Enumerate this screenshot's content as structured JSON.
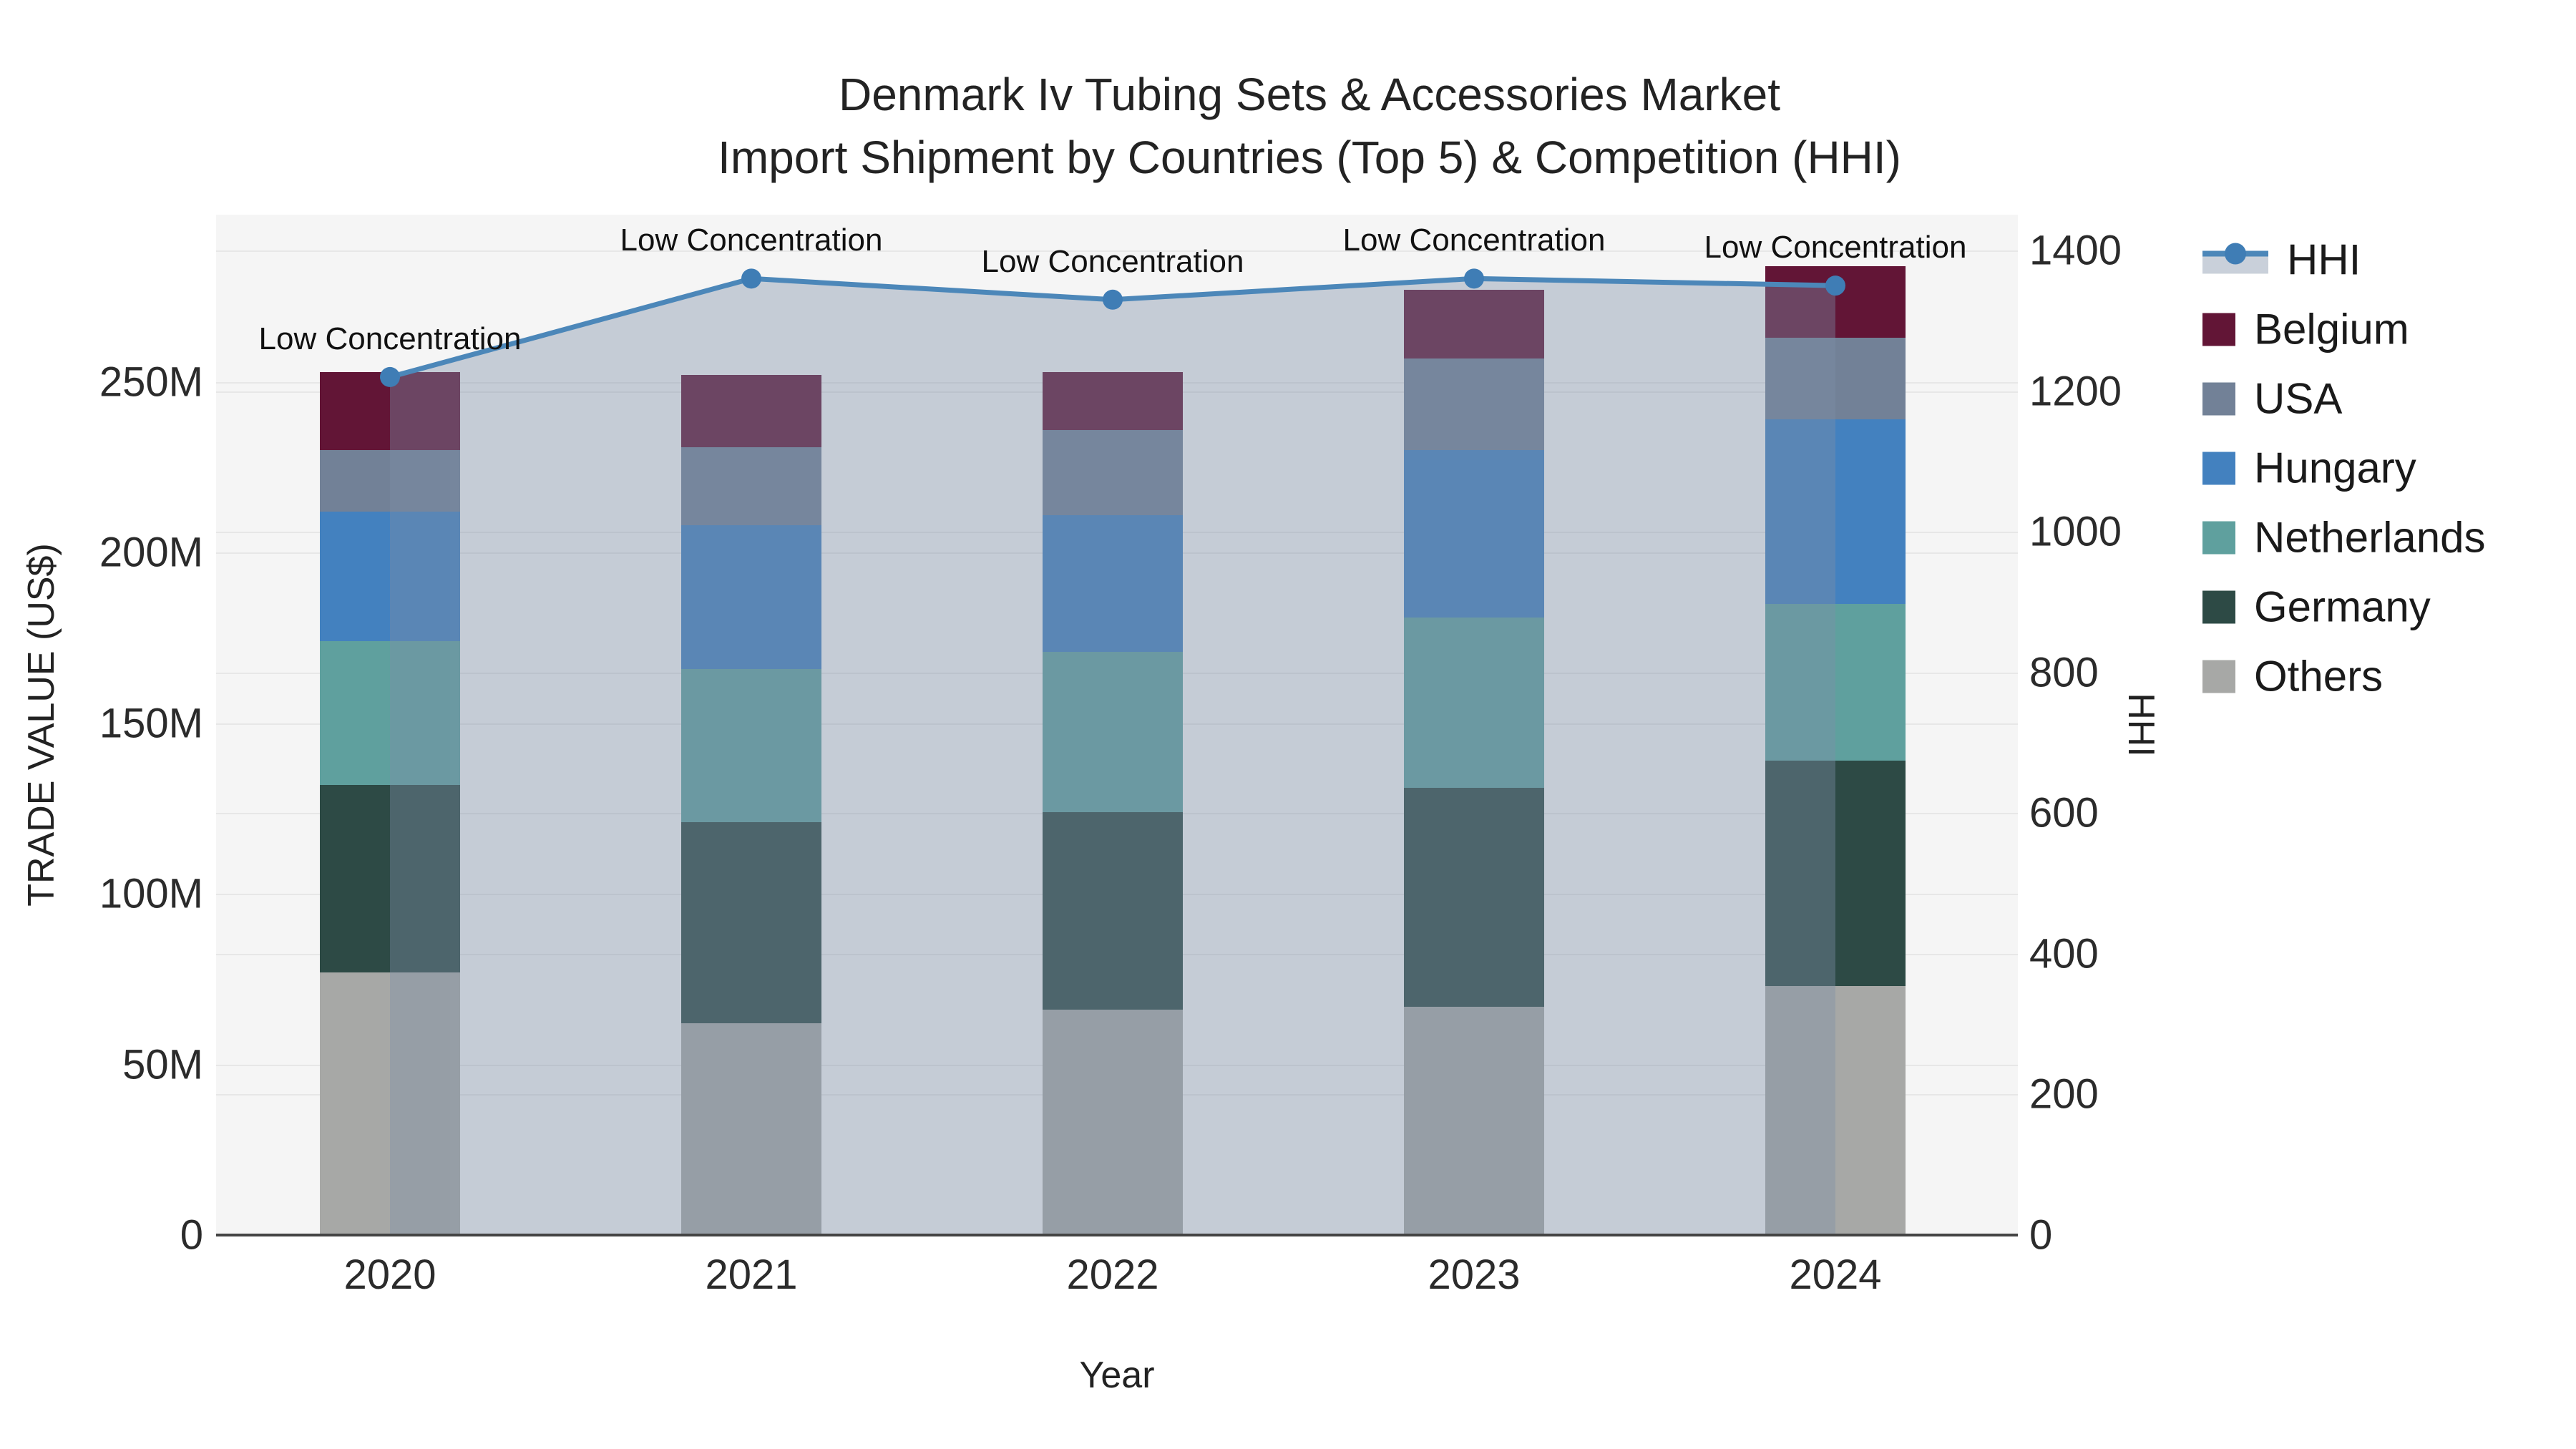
{
  "title": {
    "line1": "Denmark Iv Tubing Sets & Accessories Market",
    "line2": "Import Shipment by Countries (Top 5) & Competition (HHI)"
  },
  "axis_titles": {
    "left": "TRADE VALUE (US$)",
    "right": "HHI",
    "bottom": "Year"
  },
  "y_left_ticks": [
    {
      "label": "0",
      "value": 0
    },
    {
      "label": "50M",
      "value": 50
    },
    {
      "label": "100M",
      "value": 100
    },
    {
      "label": "150M",
      "value": 150
    },
    {
      "label": "200M",
      "value": 200
    },
    {
      "label": "250M",
      "value": 250
    }
  ],
  "y_right_ticks": [
    {
      "label": "0",
      "value": 0
    },
    {
      "label": "200",
      "value": 200
    },
    {
      "label": "400",
      "value": 400
    },
    {
      "label": "600",
      "value": 600
    },
    {
      "label": "800",
      "value": 800
    },
    {
      "label": "1000",
      "value": 1000
    },
    {
      "label": "1200",
      "value": 1200
    },
    {
      "label": "1400",
      "value": 1400
    }
  ],
  "legend": [
    {
      "label": "HHI",
      "type": "line",
      "color": "#4c87b9"
    },
    {
      "label": "Belgium",
      "type": "swatch",
      "color": "#621536"
    },
    {
      "label": "USA",
      "type": "swatch",
      "color": "#728197"
    },
    {
      "label": "Hungary",
      "type": "swatch",
      "color": "#4381bf"
    },
    {
      "label": "Netherlands",
      "type": "swatch",
      "color": "#5fa09e"
    },
    {
      "label": "Germany",
      "type": "swatch",
      "color": "#2d4a45"
    },
    {
      "label": "Others",
      "type": "swatch",
      "color": "#a7a8a6"
    }
  ],
  "colors": {
    "plot_bg": "#f5f5f5",
    "grid": "#e7e7e7",
    "axis_line": "#444444",
    "hhi_line": "#4c87b9",
    "hhi_marker": "#3f7db5",
    "hhi_area_fill": "rgba(125,142,168,0.40)"
  },
  "chart_data": {
    "type": "bar",
    "subtype": "stacked-bars-with-line-overlay",
    "title": "Denmark Iv Tubing Sets & Accessories Market — Import Shipment by Countries (Top 5) & Competition (HHI)",
    "categories": [
      "2020",
      "2021",
      "2022",
      "2023",
      "2024"
    ],
    "xlabel": "Year",
    "ylabel_left": "TRADE VALUE (US$)",
    "ylabel_right": "HHI",
    "ylim_left_millions": [
      0,
      299
    ],
    "ylim_right": [
      0,
      1400
    ],
    "grid": true,
    "legend_position": "right",
    "stack_order_bottom_to_top": [
      "Others",
      "Germany",
      "Netherlands",
      "Hungary",
      "USA",
      "Belgium"
    ],
    "series": [
      {
        "name": "Belgium",
        "unit": "M US$",
        "values": [
          23,
          21,
          17,
          20,
          21
        ],
        "color": "#621536"
      },
      {
        "name": "USA",
        "unit": "M US$",
        "values": [
          18,
          23,
          25,
          27,
          24
        ],
        "color": "#728197"
      },
      {
        "name": "Hungary",
        "unit": "M US$",
        "values": [
          38,
          42,
          40,
          49,
          54
        ],
        "color": "#4381bf"
      },
      {
        "name": "Netherlands",
        "unit": "M US$",
        "values": [
          42,
          45,
          47,
          50,
          46
        ],
        "color": "#5fa09e"
      },
      {
        "name": "Germany",
        "unit": "M US$",
        "values": [
          55,
          59,
          58,
          64,
          66
        ],
        "color": "#2d4a45"
      },
      {
        "name": "Others",
        "unit": "M US$",
        "values": [
          77,
          62,
          66,
          67,
          73
        ],
        "color": "#a7a8a6"
      }
    ],
    "stack_totals_millions": [
      253,
      252,
      253,
      277,
      284
    ],
    "line": {
      "name": "HHI",
      "axis": "right",
      "values": [
        1220,
        1360,
        1330,
        1360,
        1350
      ],
      "color": "#4c87b9",
      "marker_color": "#3f7db5",
      "area_fill": "rgba(125,142,168,0.40)",
      "point_labels": [
        "Low Concentration",
        "Low Concentration",
        "Low Concentration",
        "Low Concentration",
        "Low Concentration"
      ]
    }
  }
}
